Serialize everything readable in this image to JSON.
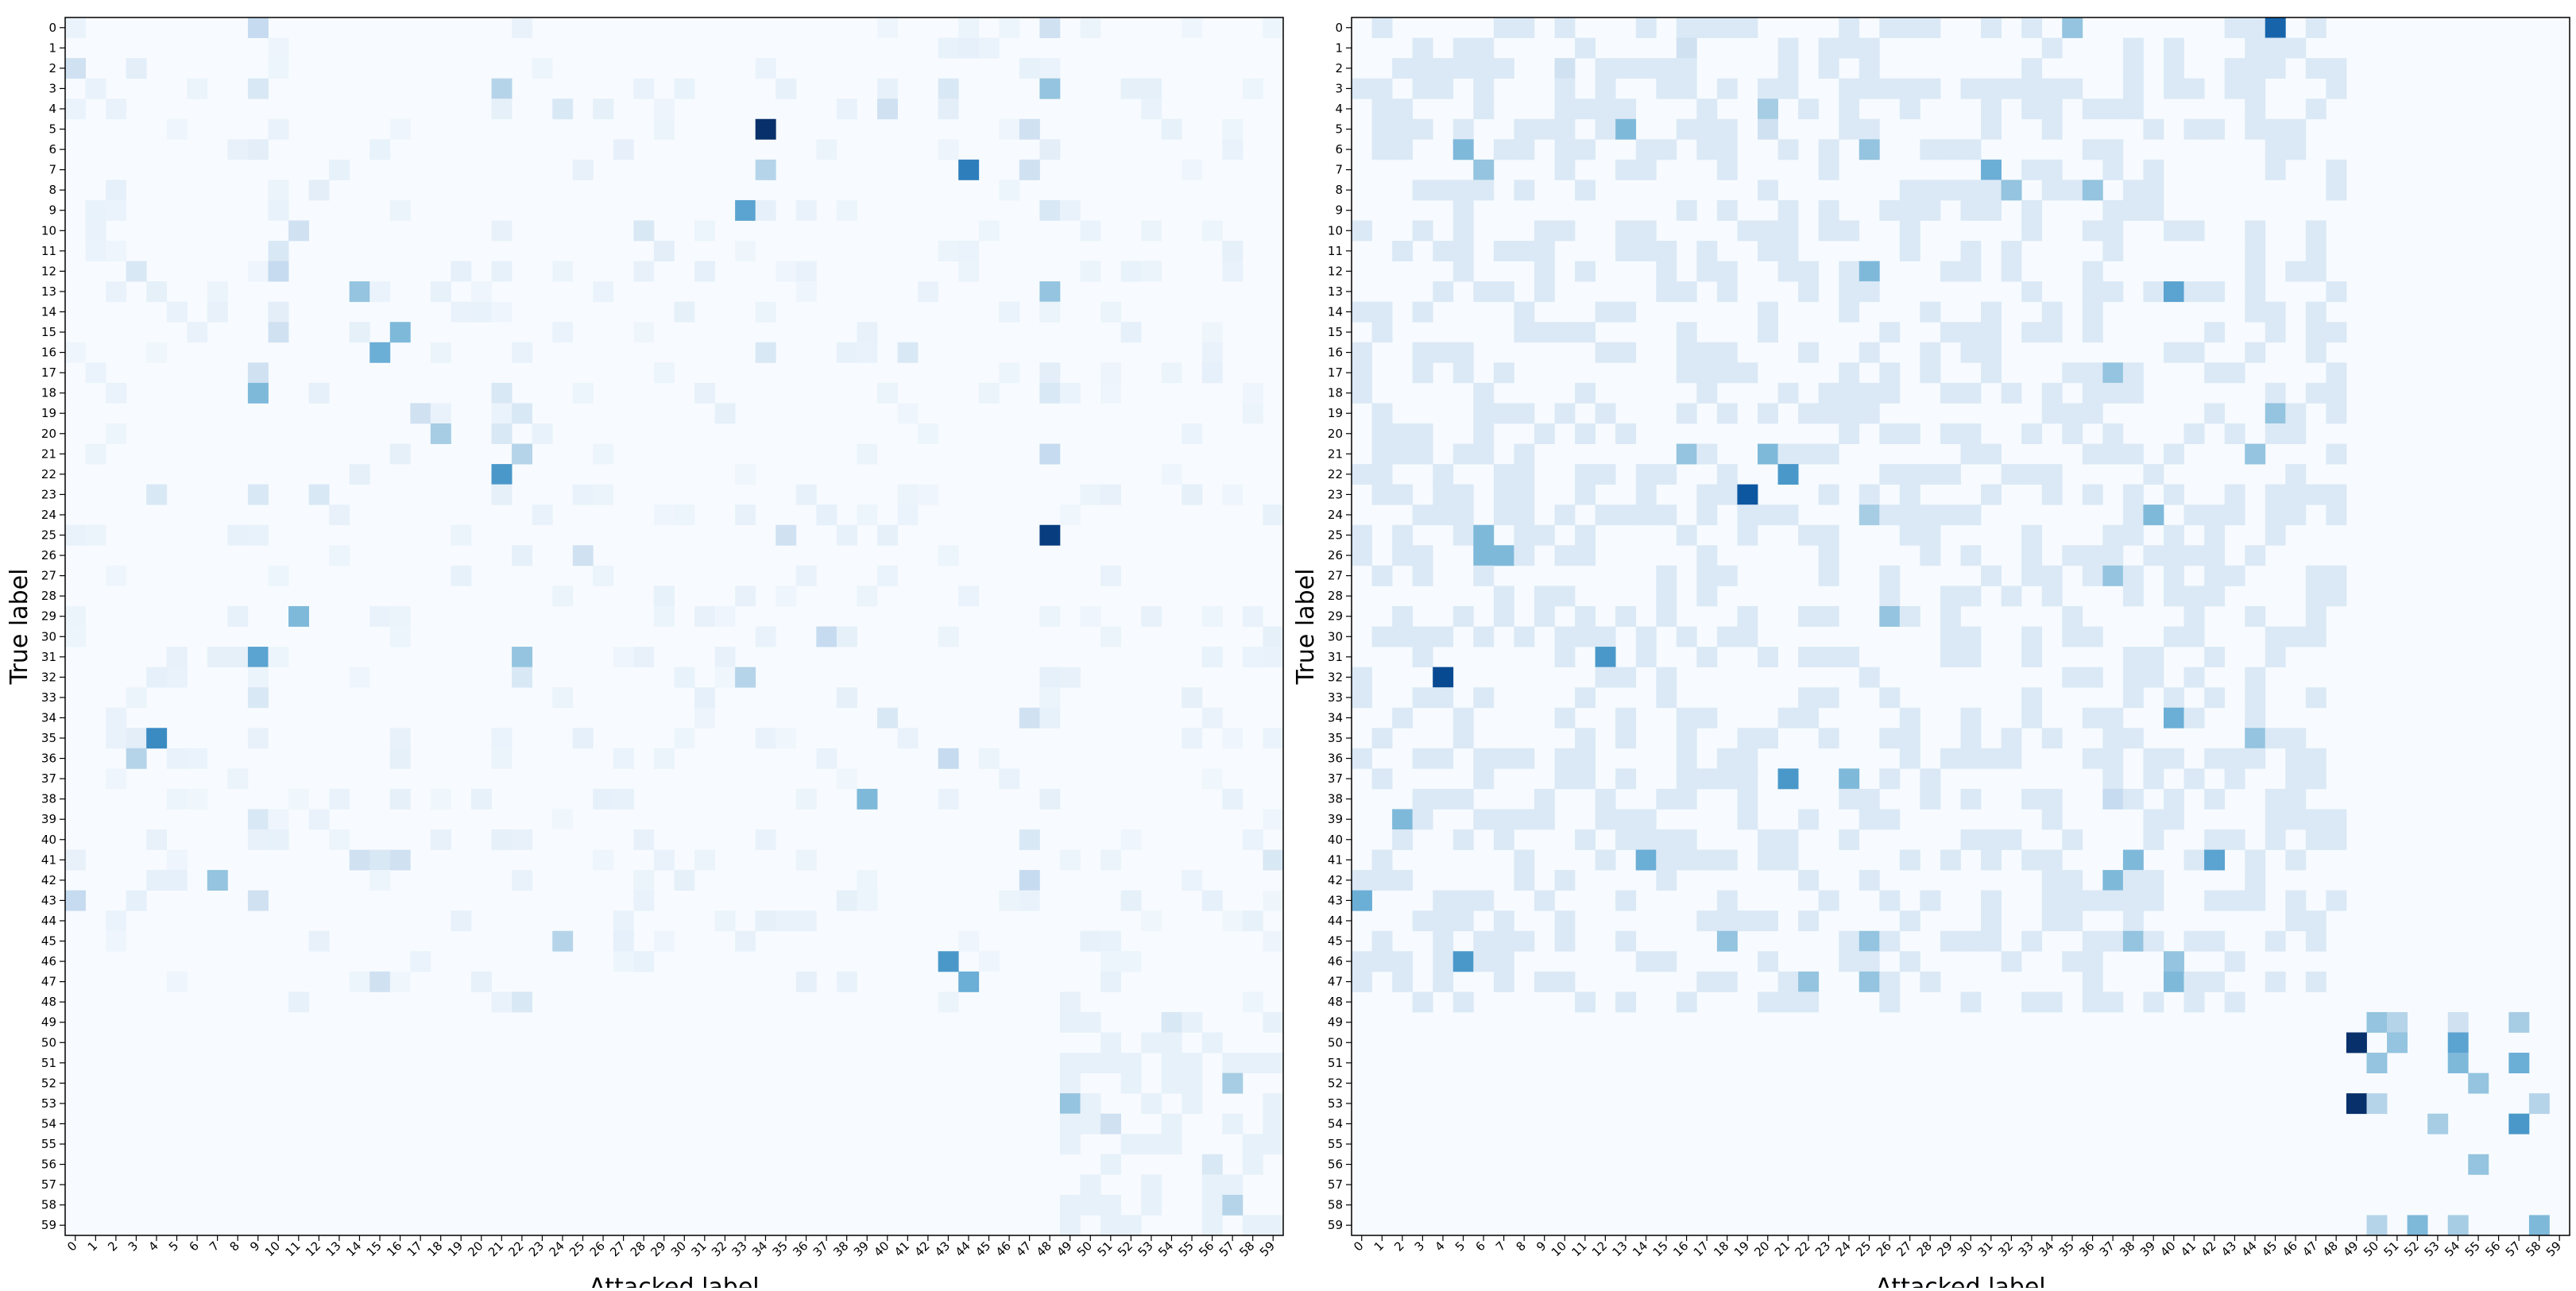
{
  "colormap": {
    "name": "Blues",
    "low": "#f7fbff",
    "high": "#08306b"
  },
  "chart_data": [
    {
      "type": "heatmap",
      "xlabel": "Attacked label",
      "ylabel": "True label",
      "x_ticks": [
        "0",
        "1",
        "2",
        "3",
        "4",
        "5",
        "6",
        "7",
        "8",
        "9",
        "10",
        "11",
        "12",
        "13",
        "14",
        "15",
        "16",
        "17",
        "18",
        "19",
        "20",
        "21",
        "22",
        "23",
        "24",
        "25",
        "26",
        "27",
        "28",
        "29",
        "30",
        "31",
        "32",
        "33",
        "34",
        "35",
        "36",
        "37",
        "38",
        "39",
        "40",
        "41",
        "42",
        "43",
        "44",
        "45",
        "46",
        "47",
        "48",
        "49",
        "50",
        "51",
        "52",
        "53",
        "54",
        "55",
        "56",
        "57",
        "58",
        "59"
      ],
      "y_ticks": [
        "0",
        "1",
        "2",
        "3",
        "4",
        "5",
        "6",
        "7",
        "8",
        "9",
        "10",
        "11",
        "12",
        "13",
        "14",
        "15",
        "16",
        "17",
        "18",
        "19",
        "20",
        "21",
        "22",
        "23",
        "24",
        "25",
        "26",
        "27",
        "28",
        "29",
        "30",
        "31",
        "32",
        "33",
        "34",
        "35",
        "36",
        "37",
        "38",
        "39",
        "40",
        "41",
        "42",
        "43",
        "44",
        "45",
        "46",
        "47",
        "48",
        "49",
        "50",
        "51",
        "52",
        "53",
        "54",
        "55",
        "56",
        "57",
        "58",
        "59"
      ],
      "value_range": [
        0,
        1
      ],
      "cells": [
        [
          0,
          9,
          0.25
        ],
        [
          0,
          48,
          0.2
        ],
        [
          2,
          0,
          0.2
        ],
        [
          2,
          3,
          0.1
        ],
        [
          3,
          9,
          0.15
        ],
        [
          3,
          21,
          0.3
        ],
        [
          3,
          43,
          0.15
        ],
        [
          3,
          48,
          0.4
        ],
        [
          4,
          24,
          0.15
        ],
        [
          4,
          40,
          0.2
        ],
        [
          4,
          43,
          0.1
        ],
        [
          5,
          34,
          1.0
        ],
        [
          5,
          47,
          0.2
        ],
        [
          6,
          9,
          0.1
        ],
        [
          6,
          48,
          0.1
        ],
        [
          7,
          34,
          0.3
        ],
        [
          7,
          44,
          0.7
        ],
        [
          7,
          47,
          0.2
        ],
        [
          8,
          12,
          0.1
        ],
        [
          9,
          33,
          0.55
        ],
        [
          9,
          48,
          0.15
        ],
        [
          10,
          11,
          0.2
        ],
        [
          10,
          28,
          0.15
        ],
        [
          11,
          10,
          0.15
        ],
        [
          11,
          29,
          0.1
        ],
        [
          12,
          3,
          0.15
        ],
        [
          12,
          10,
          0.25
        ],
        [
          13,
          14,
          0.4
        ],
        [
          13,
          48,
          0.4
        ],
        [
          14,
          10,
          0.1
        ],
        [
          15,
          10,
          0.2
        ],
        [
          15,
          16,
          0.45
        ],
        [
          16,
          15,
          0.5
        ],
        [
          16,
          34,
          0.15
        ],
        [
          16,
          41,
          0.15
        ],
        [
          17,
          9,
          0.2
        ],
        [
          17,
          48,
          0.1
        ],
        [
          18,
          9,
          0.45
        ],
        [
          18,
          21,
          0.15
        ],
        [
          18,
          48,
          0.15
        ],
        [
          19,
          17,
          0.2
        ],
        [
          19,
          22,
          0.15
        ],
        [
          20,
          18,
          0.35
        ],
        [
          20,
          21,
          0.15
        ],
        [
          21,
          22,
          0.3
        ],
        [
          21,
          48,
          0.25
        ],
        [
          22,
          21,
          0.6
        ],
        [
          23,
          4,
          0.15
        ],
        [
          23,
          9,
          0.15
        ],
        [
          23,
          12,
          0.15
        ],
        [
          25,
          35,
          0.2
        ],
        [
          25,
          48,
          0.95
        ],
        [
          26,
          25,
          0.2
        ],
        [
          29,
          11,
          0.45
        ],
        [
          30,
          37,
          0.25
        ],
        [
          31,
          9,
          0.55
        ],
        [
          31,
          22,
          0.4
        ],
        [
          32,
          22,
          0.15
        ],
        [
          32,
          33,
          0.3
        ],
        [
          33,
          9,
          0.15
        ],
        [
          34,
          40,
          0.15
        ],
        [
          34,
          47,
          0.2
        ],
        [
          35,
          3,
          0.1
        ],
        [
          35,
          4,
          0.65
        ],
        [
          36,
          3,
          0.3
        ],
        [
          36,
          43,
          0.25
        ],
        [
          38,
          39,
          0.45
        ],
        [
          39,
          9,
          0.15
        ],
        [
          40,
          47,
          0.15
        ],
        [
          41,
          14,
          0.2
        ],
        [
          41,
          15,
          0.15
        ],
        [
          41,
          16,
          0.2
        ],
        [
          41,
          59,
          0.15
        ],
        [
          42,
          7,
          0.4
        ],
        [
          42,
          47,
          0.25
        ],
        [
          43,
          0,
          0.25
        ],
        [
          43,
          9,
          0.2
        ],
        [
          45,
          24,
          0.3
        ],
        [
          46,
          43,
          0.6
        ],
        [
          47,
          15,
          0.2
        ],
        [
          47,
          44,
          0.5
        ],
        [
          48,
          22,
          0.15
        ],
        [
          49,
          54,
          0.15
        ],
        [
          52,
          57,
          0.35
        ],
        [
          53,
          49,
          0.4
        ],
        [
          54,
          51,
          0.2
        ],
        [
          56,
          56,
          0.15
        ],
        [
          58,
          57,
          0.3
        ]
      ],
      "block_region": {
        "rows": [
          49,
          59
        ],
        "cols": [
          49,
          59
        ],
        "value": 0.08
      }
    },
    {
      "type": "heatmap",
      "xlabel": "Attacked label",
      "ylabel": "True label",
      "x_ticks": [
        "0",
        "1",
        "2",
        "3",
        "4",
        "5",
        "6",
        "7",
        "8",
        "9",
        "10",
        "11",
        "12",
        "13",
        "14",
        "15",
        "16",
        "17",
        "18",
        "19",
        "20",
        "21",
        "22",
        "23",
        "24",
        "25",
        "26",
        "27",
        "28",
        "29",
        "30",
        "31",
        "32",
        "33",
        "34",
        "35",
        "36",
        "37",
        "38",
        "39",
        "40",
        "41",
        "42",
        "43",
        "44",
        "45",
        "46",
        "47",
        "48",
        "49",
        "50",
        "51",
        "52",
        "53",
        "54",
        "55",
        "56",
        "57",
        "58",
        "59"
      ],
      "y_ticks": [
        "0",
        "1",
        "2",
        "3",
        "4",
        "5",
        "6",
        "7",
        "8",
        "9",
        "10",
        "11",
        "12",
        "13",
        "14",
        "15",
        "16",
        "17",
        "18",
        "19",
        "20",
        "21",
        "22",
        "23",
        "24",
        "25",
        "26",
        "27",
        "28",
        "29",
        "30",
        "31",
        "32",
        "33",
        "34",
        "35",
        "36",
        "37",
        "38",
        "39",
        "40",
        "41",
        "42",
        "43",
        "44",
        "45",
        "46",
        "47",
        "48",
        "49",
        "50",
        "51",
        "52",
        "53",
        "54",
        "55",
        "56",
        "57",
        "58",
        "59"
      ],
      "value_range": [
        0,
        1
      ],
      "cells": [
        [
          0,
          35,
          0.4
        ],
        [
          0,
          45,
          0.8
        ],
        [
          1,
          16,
          0.2
        ],
        [
          2,
          10,
          0.2
        ],
        [
          4,
          20,
          0.35
        ],
        [
          5,
          13,
          0.45
        ],
        [
          5,
          20,
          0.2
        ],
        [
          6,
          5,
          0.45
        ],
        [
          6,
          25,
          0.4
        ],
        [
          7,
          6,
          0.4
        ],
        [
          7,
          31,
          0.5
        ],
        [
          8,
          32,
          0.4
        ],
        [
          8,
          36,
          0.4
        ],
        [
          12,
          25,
          0.45
        ],
        [
          13,
          40,
          0.55
        ],
        [
          17,
          37,
          0.4
        ],
        [
          19,
          45,
          0.4
        ],
        [
          21,
          16,
          0.4
        ],
        [
          21,
          20,
          0.45
        ],
        [
          21,
          44,
          0.4
        ],
        [
          22,
          21,
          0.6
        ],
        [
          23,
          19,
          0.85
        ],
        [
          24,
          39,
          0.45
        ],
        [
          24,
          25,
          0.35
        ],
        [
          25,
          6,
          0.45
        ],
        [
          26,
          6,
          0.45
        ],
        [
          26,
          7,
          0.45
        ],
        [
          27,
          37,
          0.4
        ],
        [
          29,
          26,
          0.4
        ],
        [
          31,
          12,
          0.6
        ],
        [
          32,
          4,
          0.9
        ],
        [
          34,
          40,
          0.5
        ],
        [
          35,
          44,
          0.4
        ],
        [
          37,
          21,
          0.6
        ],
        [
          37,
          24,
          0.45
        ],
        [
          38,
          37,
          0.25
        ],
        [
          39,
          2,
          0.45
        ],
        [
          41,
          14,
          0.5
        ],
        [
          41,
          38,
          0.45
        ],
        [
          41,
          42,
          0.55
        ],
        [
          42,
          37,
          0.45
        ],
        [
          43,
          0,
          0.5
        ],
        [
          45,
          18,
          0.4
        ],
        [
          45,
          25,
          0.4
        ],
        [
          45,
          38,
          0.4
        ],
        [
          46,
          5,
          0.6
        ],
        [
          46,
          40,
          0.4
        ],
        [
          47,
          22,
          0.4
        ],
        [
          47,
          25,
          0.4
        ],
        [
          47,
          40,
          0.45
        ],
        [
          49,
          50,
          0.4
        ],
        [
          49,
          51,
          0.3
        ],
        [
          49,
          54,
          0.2
        ],
        [
          49,
          57,
          0.35
        ],
        [
          50,
          49,
          1.0
        ],
        [
          50,
          51,
          0.4
        ],
        [
          50,
          54,
          0.55
        ],
        [
          51,
          50,
          0.4
        ],
        [
          51,
          54,
          0.45
        ],
        [
          51,
          57,
          0.5
        ],
        [
          52,
          55,
          0.4
        ],
        [
          53,
          49,
          1.0
        ],
        [
          53,
          50,
          0.3
        ],
        [
          53,
          58,
          0.3
        ],
        [
          54,
          53,
          0.35
        ],
        [
          54,
          57,
          0.6
        ],
        [
          56,
          55,
          0.4
        ],
        [
          59,
          50,
          0.3
        ],
        [
          59,
          52,
          0.45
        ],
        [
          59,
          54,
          0.35
        ],
        [
          59,
          58,
          0.45
        ]
      ],
      "background_block": {
        "rows": [
          0,
          48
        ],
        "cols": [
          0,
          48
        ],
        "value": 0.14
      }
    }
  ]
}
